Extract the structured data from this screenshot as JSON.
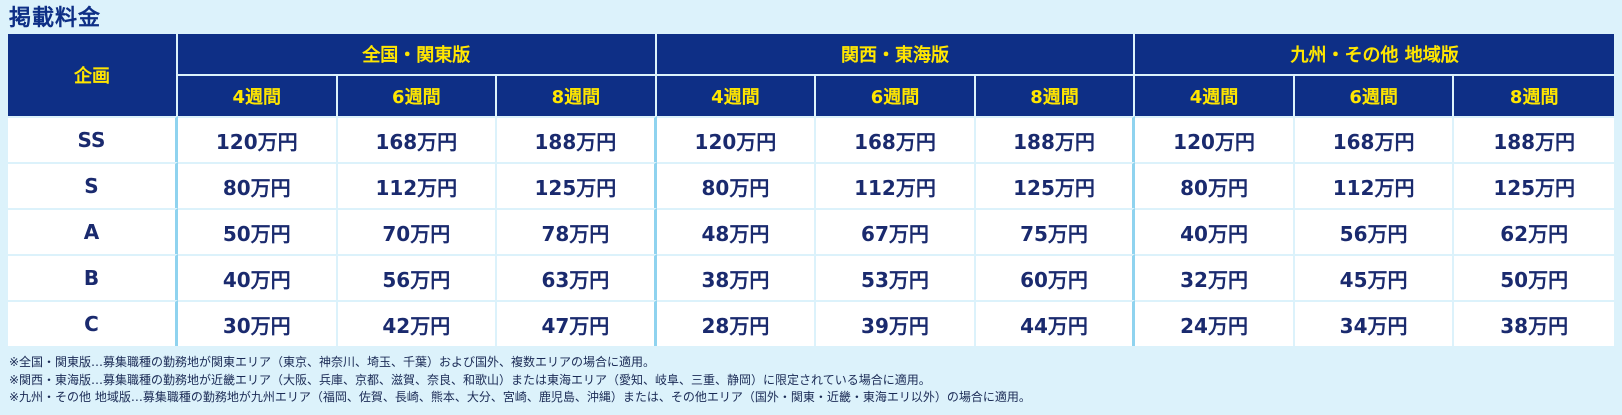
{
  "title": "掲載料金",
  "table": {
    "plan_header": "企画",
    "groups": [
      "全国・関東版",
      "関西・東海版",
      "九州・その他 地域版"
    ],
    "periods": [
      "4週間",
      "6週間",
      "8週間"
    ],
    "rows": [
      {
        "plan": "SS",
        "prices": [
          "120万円",
          "168万円",
          "188万円",
          "120万円",
          "168万円",
          "188万円",
          "120万円",
          "168万円",
          "188万円"
        ]
      },
      {
        "plan": "S",
        "prices": [
          "80万円",
          "112万円",
          "125万円",
          "80万円",
          "112万円",
          "125万円",
          "80万円",
          "112万円",
          "125万円"
        ]
      },
      {
        "plan": "A",
        "prices": [
          "50万円",
          "70万円",
          "78万円",
          "48万円",
          "67万円",
          "75万円",
          "40万円",
          "56万円",
          "62万円"
        ]
      },
      {
        "plan": "B",
        "prices": [
          "40万円",
          "56万円",
          "63万円",
          "38万円",
          "53万円",
          "60万円",
          "32万円",
          "45万円",
          "50万円"
        ]
      },
      {
        "plan": "C",
        "prices": [
          "30万円",
          "42万円",
          "47万円",
          "28万円",
          "39万円",
          "44万円",
          "24万円",
          "34万円",
          "38万円"
        ]
      }
    ]
  },
  "notes": [
    "※全国・関東版…募集職種の勤務地が関東エリア（東京、神奈川、埼玉、千葉）および国外、複数エリアの場合に適用。",
    "※関西・東海版…募集職種の勤務地が近畿エリア（大阪、兵庫、京都、滋賀、奈良、和歌山）または東海エリア（愛知、岐阜、三重、静岡）に限定されている場合に適用。",
    "※九州・その他 地域版…募集職種の勤務地が九州エリア（福岡、佐賀、長崎、熊本、大分、宮崎、鹿児島、沖縄）または、その他エリア（国外・関東・近畿・東海エリ以外）の場合に適用。"
  ]
}
